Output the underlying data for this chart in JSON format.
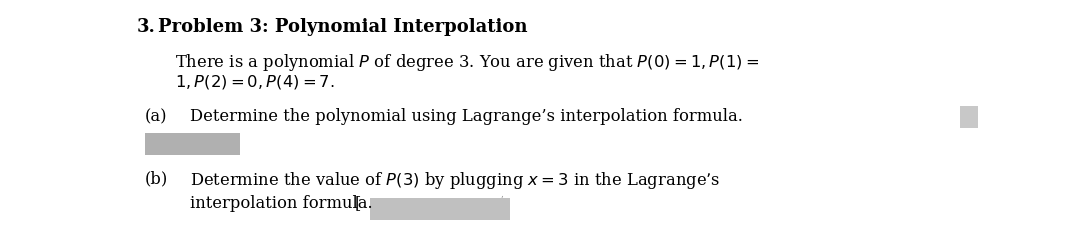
{
  "background_color": "#ffffff",
  "figsize": [
    10.8,
    2.43
  ],
  "dpi": 100,
  "fs_title": 13.0,
  "fs_body": 11.8,
  "fs_parts": 11.8,
  "title_number": "3.",
  "title_rest": "Problem 3: Polynomial Interpolation",
  "body_line1": "There is a polynomial $P$ of degree 3. You are given that $P(0) = 1, P(1) =$",
  "body_line2": "$1, P(2) = 0, P(4) = 7.$",
  "part_a_label": "(a)",
  "part_a_text": "Determine the polynomial using Lagrange’s interpolation formula.",
  "part_b_label": "(b)",
  "part_b_line1": "Determine the value of $P(3)$ by plugging $x = 3$ in the Lagrange’s",
  "part_b_line2": "interpolation formula.",
  "redact_gray1": "#b0b0b0",
  "redact_gray2": "#c0c0c0",
  "redact_gray3": "#c8c8c8"
}
